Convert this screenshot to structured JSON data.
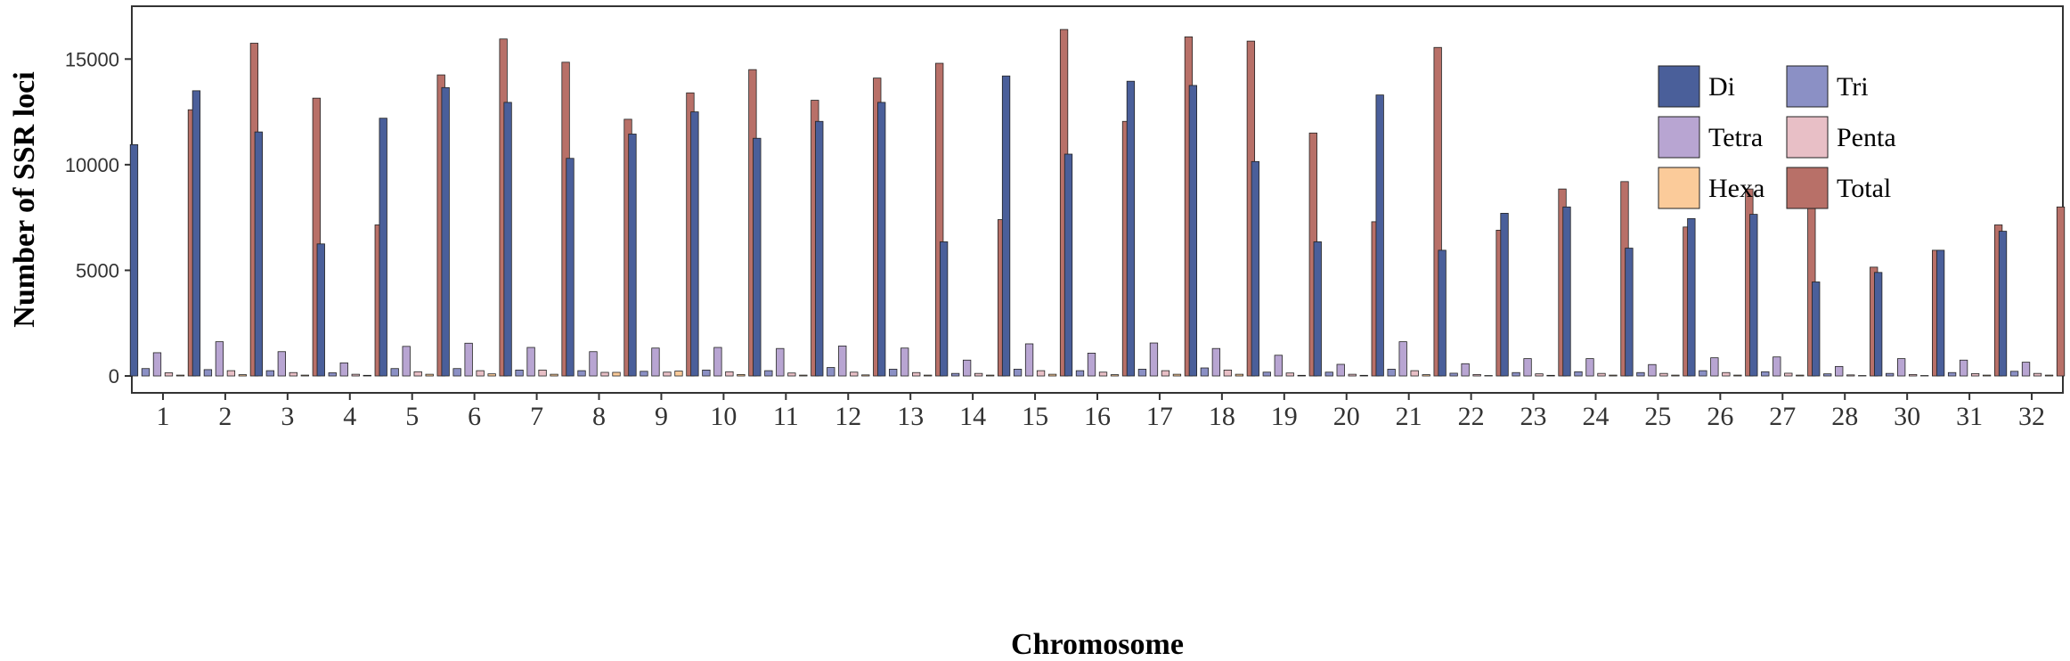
{
  "chart_data": {
    "type": "bar",
    "xlabel": "Chromosome",
    "ylabel": "Number of SSR loci",
    "ylim": [
      -800,
      17500
    ],
    "yticks": [
      0,
      5000,
      10000,
      15000
    ],
    "grid": false,
    "legend_position": "top-right",
    "categories": [
      "1",
      "2",
      "3",
      "4",
      "5",
      "6",
      "7",
      "8",
      "9",
      "10",
      "11",
      "12",
      "13",
      "14",
      "15",
      "16",
      "17",
      "18",
      "19",
      "20",
      "21",
      "22",
      "23",
      "24",
      "25",
      "26",
      "27",
      "28",
      "30",
      "31",
      "32"
    ],
    "series": [
      {
        "name": "Di",
        "color": "#4a5f9a",
        "values": [
          10950,
          13500,
          11550,
          6250,
          12200,
          13650,
          12950,
          10300,
          11450,
          12500,
          11250,
          12050,
          12950,
          6350,
          14200,
          10500,
          13950,
          13750,
          10150,
          6350,
          13300,
          5950,
          7700,
          8000,
          6050,
          7450,
          7650,
          4450,
          4900,
          5950,
          6850
        ]
      },
      {
        "name": "Tri",
        "color": "#8b90c5",
        "values": [
          350,
          300,
          250,
          150,
          350,
          350,
          280,
          250,
          220,
          280,
          250,
          400,
          320,
          120,
          320,
          250,
          320,
          380,
          180,
          180,
          320,
          130,
          160,
          200,
          160,
          250,
          200,
          100,
          120,
          160,
          220
        ]
      },
      {
        "name": "Tetra",
        "color": "#b8a5d2",
        "values": [
          1100,
          1620,
          1150,
          620,
          1400,
          1550,
          1350,
          1150,
          1320,
          1350,
          1300,
          1420,
          1320,
          750,
          1520,
          1080,
          1560,
          1300,
          980,
          550,
          1620,
          580,
          820,
          820,
          540,
          860,
          900,
          450,
          820,
          750,
          650
        ]
      },
      {
        "name": "Penta",
        "color": "#e8bfc6",
        "values": [
          150,
          250,
          160,
          80,
          200,
          250,
          280,
          170,
          180,
          200,
          140,
          180,
          160,
          120,
          250,
          180,
          250,
          280,
          140,
          80,
          250,
          70,
          100,
          120,
          120,
          160,
          130,
          50,
          70,
          110,
          120
        ]
      },
      {
        "name": "Hexa",
        "color": "#fbcb9a",
        "values": [
          40,
          60,
          40,
          30,
          80,
          100,
          80,
          170,
          230,
          70,
          40,
          50,
          40,
          40,
          80,
          60,
          80,
          80,
          30,
          30,
          60,
          20,
          30,
          40,
          40,
          40,
          40,
          20,
          20,
          40,
          40
        ]
      },
      {
        "name": "Total",
        "color": "#b87068",
        "values": [
          12600,
          15750,
          13150,
          7150,
          14250,
          15950,
          14850,
          12150,
          13400,
          14500,
          13050,
          14100,
          14800,
          7400,
          16400,
          12050,
          16050,
          15850,
          11500,
          7300,
          15550,
          6900,
          8850,
          9200,
          7050,
          8850,
          8950,
          5150,
          5950,
          7150,
          8000
        ]
      }
    ]
  }
}
